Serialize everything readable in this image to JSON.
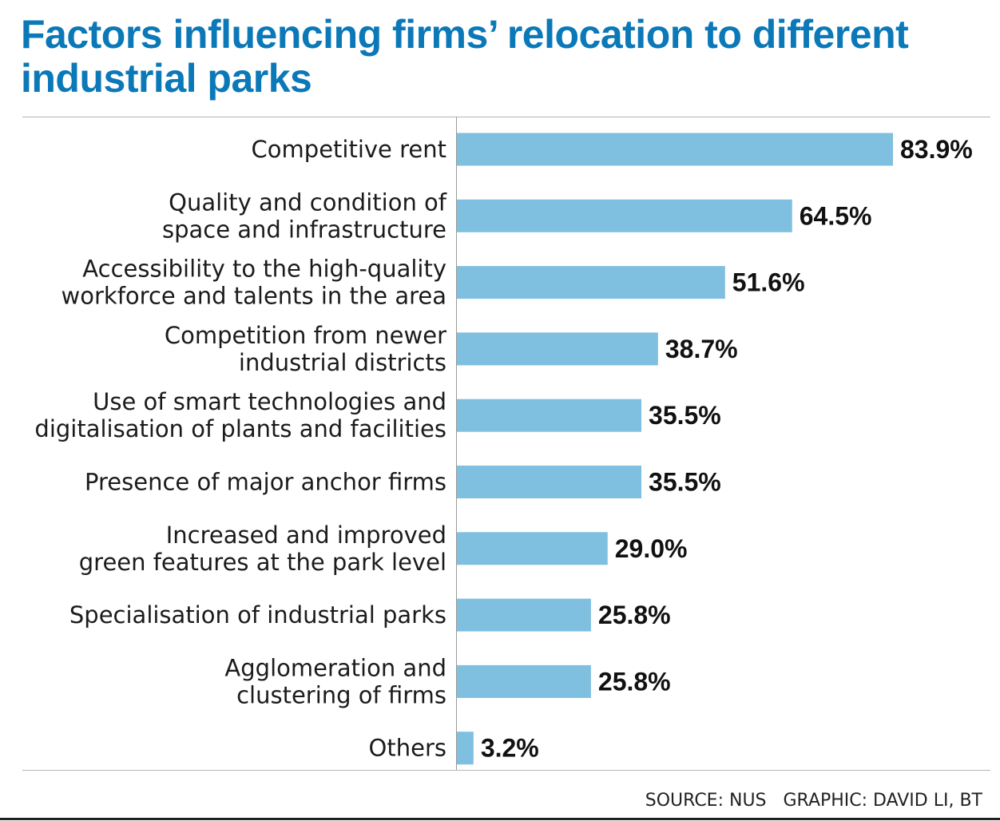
{
  "chart_data": {
    "type": "bar",
    "orientation": "horizontal",
    "title": "Factors influencing firms’ relocation to different industrial parks",
    "categories": [
      [
        "Competitive rent"
      ],
      [
        "Quality and condition of",
        "space and infrastructure"
      ],
      [
        "Accessibility to the high-quality",
        "workforce and talents in the area"
      ],
      [
        "Competition from newer",
        "industrial districts"
      ],
      [
        "Use of smart technologies and",
        "digitalisation of plants and facilities"
      ],
      [
        "Presence of major anchor firms"
      ],
      [
        "Increased and improved",
        "green features at the park level"
      ],
      [
        "Specialisation of industrial parks"
      ],
      [
        "Agglomeration and",
        "clustering of firms"
      ],
      [
        "Others"
      ]
    ],
    "values": [
      83.9,
      64.5,
      51.6,
      38.7,
      35.5,
      35.5,
      29.0,
      25.8,
      25.8,
      3.2
    ],
    "value_labels": [
      "83.9%",
      "64.5%",
      "51.6%",
      "38.7%",
      "35.5%",
      "35.5%",
      "29.0%",
      "25.8%",
      "25.8%",
      "3.2%"
    ],
    "unit": "%",
    "bar_color": "#7fbfe0",
    "grid": false
  },
  "colors": {
    "title": "#0b78b8",
    "bar": "#7fbfe0"
  },
  "footer": {
    "source": "SOURCE: NUS",
    "graphic": "GRAPHIC: DAVID LI, BT"
  }
}
